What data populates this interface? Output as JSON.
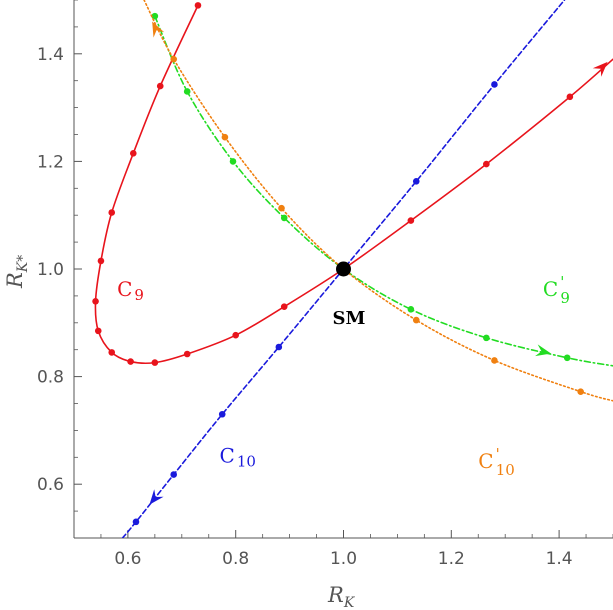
{
  "chart_data": {
    "type": "line",
    "xlabel": "R",
    "xlabel_sub": "K",
    "ylabel": "R",
    "ylabel_sub": "K*",
    "xlim": [
      0.5,
      1.5
    ],
    "ylim": [
      0.5,
      1.5
    ],
    "xticks": [
      0.6,
      0.8,
      1.0,
      1.2,
      1.4
    ],
    "yticks": [
      0.6,
      0.8,
      1.0,
      1.2,
      1.4
    ],
    "xtick_labels": [
      "0.6",
      "0.8",
      "1.0",
      "1.2",
      "1.4"
    ],
    "ytick_labels": [
      "0.6",
      "0.8",
      "1.0",
      "1.2",
      "1.4"
    ],
    "grid": false,
    "sm_point": {
      "x": 1.0,
      "y": 1.0,
      "label": "SM"
    },
    "series": [
      {
        "key": "c9",
        "color": "#e8141c",
        "style": "solid",
        "label_main": "C",
        "label_sub": "9",
        "label_prime": "",
        "label_at": [
          0.58,
          0.95
        ],
        "points": [
          [
            0.73,
            1.49
          ],
          [
            0.66,
            1.34
          ],
          [
            0.61,
            1.215
          ],
          [
            0.57,
            1.105
          ],
          [
            0.55,
            1.015
          ],
          [
            0.54,
            0.94
          ],
          [
            0.545,
            0.885
          ],
          [
            0.57,
            0.845
          ],
          [
            0.605,
            0.828
          ],
          [
            0.65,
            0.826
          ],
          [
            0.71,
            0.842
          ],
          [
            0.8,
            0.877
          ],
          [
            0.89,
            0.93
          ],
          [
            1.0,
            1.0
          ],
          [
            1.125,
            1.09
          ],
          [
            1.265,
            1.195
          ],
          [
            1.42,
            1.32
          ],
          [
            1.5,
            1.39
          ]
        ],
        "markers": [
          [
            0.73,
            1.49
          ],
          [
            0.66,
            1.34
          ],
          [
            0.61,
            1.215
          ],
          [
            0.57,
            1.105
          ],
          [
            0.55,
            1.015
          ],
          [
            0.54,
            0.94
          ],
          [
            0.545,
            0.885
          ],
          [
            0.57,
            0.845
          ],
          [
            0.605,
            0.828
          ],
          [
            0.65,
            0.826
          ],
          [
            0.71,
            0.842
          ],
          [
            0.8,
            0.877
          ],
          [
            0.89,
            0.93
          ],
          [
            1.125,
            1.09
          ],
          [
            1.265,
            1.195
          ],
          [
            1.42,
            1.32
          ]
        ],
        "arrow": [
          [
            1.46,
            1.355
          ],
          [
            1.49,
            1.385
          ]
        ]
      },
      {
        "key": "c10",
        "color": "#1a1adc",
        "style": "dashed",
        "label_main": "C",
        "label_sub": "10",
        "label_prime": "",
        "label_at": [
          0.77,
          0.64
        ],
        "points": [
          [
            0.59,
            0.5
          ],
          [
            0.615,
            0.53
          ],
          [
            0.685,
            0.618
          ],
          [
            0.775,
            0.73
          ],
          [
            0.88,
            0.855
          ],
          [
            1.0,
            1.0
          ],
          [
            1.135,
            1.163
          ],
          [
            1.28,
            1.343
          ],
          [
            1.41,
            1.5
          ]
        ],
        "markers": [
          [
            0.615,
            0.53
          ],
          [
            0.685,
            0.618
          ],
          [
            0.775,
            0.73
          ],
          [
            0.88,
            0.855
          ],
          [
            1.135,
            1.163
          ],
          [
            1.28,
            1.343
          ]
        ],
        "arrow": [
          [
            0.665,
            0.593
          ],
          [
            0.64,
            0.562
          ]
        ]
      },
      {
        "key": "c9p",
        "color": "#22dc22",
        "style": "dashdot",
        "label_main": "C",
        "label_sub": "9",
        "label_prime": "'",
        "label_at": [
          1.37,
          0.95
        ],
        "points": [
          [
            0.65,
            1.47
          ],
          [
            0.71,
            1.33
          ],
          [
            0.795,
            1.2
          ],
          [
            0.89,
            1.095
          ],
          [
            1.0,
            1.0
          ],
          [
            1.125,
            0.925
          ],
          [
            1.265,
            0.872
          ],
          [
            1.415,
            0.835
          ],
          [
            1.5,
            0.82
          ]
        ],
        "markers": [
          [
            0.65,
            1.47
          ],
          [
            0.71,
            1.33
          ],
          [
            0.795,
            1.2
          ],
          [
            0.89,
            1.095
          ],
          [
            1.125,
            0.925
          ],
          [
            1.265,
            0.872
          ],
          [
            1.415,
            0.835
          ]
        ],
        "arrow": [
          [
            1.34,
            0.853
          ],
          [
            1.385,
            0.843
          ]
        ]
      },
      {
        "key": "c10p",
        "color": "#f08010",
        "style": "dotted",
        "label_main": "C",
        "label_sub": "10",
        "label_prime": "'",
        "label_at": [
          1.25,
          0.63
        ],
        "points": [
          [
            0.63,
            1.5
          ],
          [
            0.685,
            1.39
          ],
          [
            0.78,
            1.245
          ],
          [
            0.885,
            1.113
          ],
          [
            1.0,
            1.0
          ],
          [
            1.135,
            0.905
          ],
          [
            1.28,
            0.83
          ],
          [
            1.44,
            0.772
          ],
          [
            1.5,
            0.755
          ]
        ],
        "markers": [
          [
            0.685,
            1.39
          ],
          [
            0.78,
            1.245
          ],
          [
            0.885,
            1.113
          ],
          [
            1.135,
            0.905
          ],
          [
            1.28,
            0.83
          ],
          [
            1.44,
            0.772
          ]
        ],
        "arrow": [
          [
            0.665,
            1.42
          ],
          [
            0.645,
            1.46
          ]
        ]
      }
    ]
  }
}
